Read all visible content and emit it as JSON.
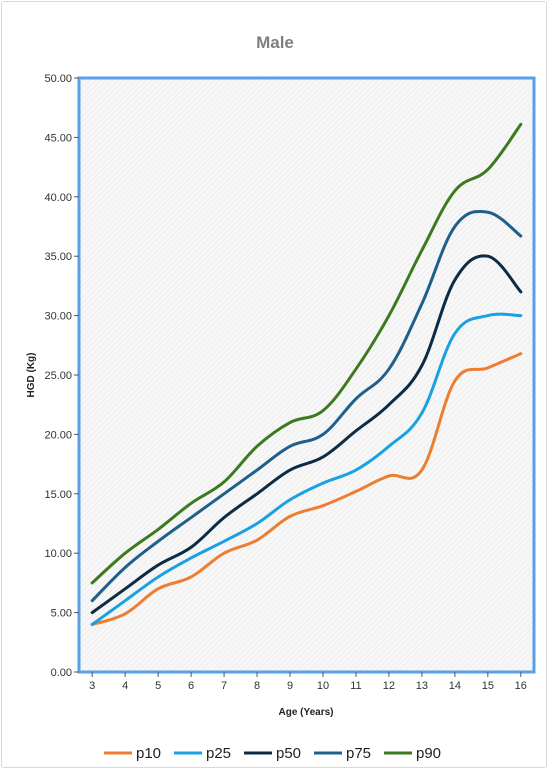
{
  "chart_data": {
    "type": "line",
    "title": "Male",
    "xlabel": "Age (Years)",
    "ylabel": "HGD (Kg)",
    "x": [
      3,
      4,
      5,
      6,
      7,
      8,
      9,
      10,
      11,
      12,
      13,
      14,
      15,
      16
    ],
    "xlim": [
      2.6,
      16.4
    ],
    "ylim": [
      0,
      50
    ],
    "y_ticks": [
      "0.00",
      "5.00",
      "10.00",
      "15.00",
      "20.00",
      "25.00",
      "30.00",
      "35.00",
      "40.00",
      "45.00",
      "50.00"
    ],
    "x_ticks": [
      "3",
      "4",
      "5",
      "6",
      "7",
      "8",
      "9",
      "10",
      "11",
      "12",
      "13",
      "14",
      "15",
      "16"
    ],
    "legend_position": "bottom",
    "series": [
      {
        "name": "p10",
        "color": "#ed7d31",
        "values": [
          4.0,
          4.9,
          7.0,
          8.0,
          10.0,
          11.1,
          13.1,
          14.0,
          15.2,
          16.5,
          17.0,
          24.5,
          25.6,
          26.8
        ]
      },
      {
        "name": "p25",
        "color": "#1ba1e2",
        "values": [
          4.0,
          6.0,
          8.0,
          9.6,
          11.0,
          12.5,
          14.5,
          15.9,
          17.0,
          19.0,
          21.8,
          28.5,
          30.0,
          30.0
        ]
      },
      {
        "name": "p50",
        "color": "#0d2b45",
        "values": [
          5.0,
          7.0,
          9.0,
          10.5,
          13.0,
          15.0,
          17.0,
          18.1,
          20.3,
          22.5,
          25.8,
          33.0,
          35.0,
          32.0
        ]
      },
      {
        "name": "p75",
        "color": "#1f5f8b",
        "values": [
          6.0,
          8.8,
          11.0,
          13.0,
          15.0,
          17.0,
          19.0,
          20.0,
          23.0,
          25.5,
          31.0,
          37.5,
          38.7,
          36.7
        ]
      },
      {
        "name": "p90",
        "color": "#3d7a1f",
        "values": [
          7.5,
          10.0,
          12.0,
          14.2,
          16.0,
          19.0,
          21.0,
          22.0,
          25.5,
          30.0,
          35.5,
          40.5,
          42.3,
          46.1
        ]
      }
    ]
  }
}
